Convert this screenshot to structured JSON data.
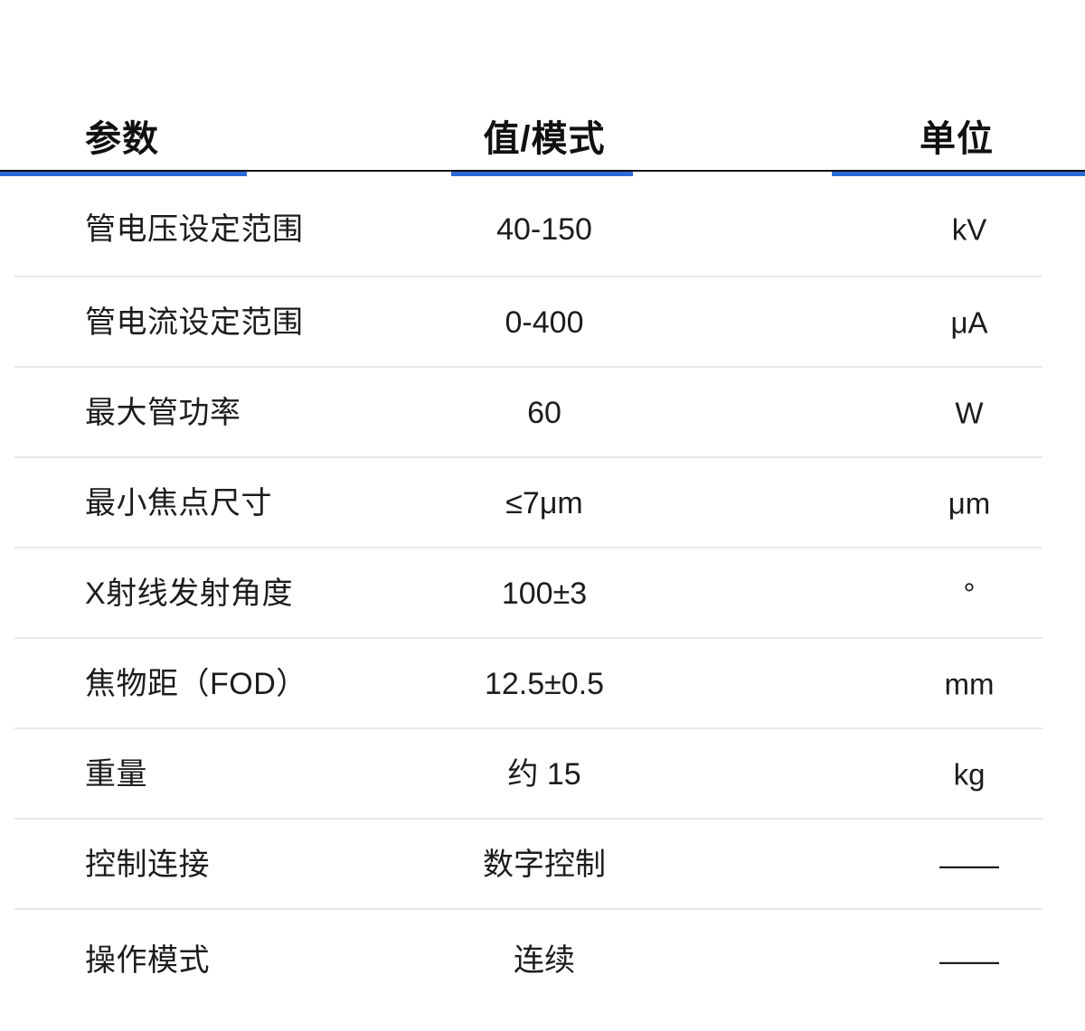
{
  "page": {
    "background_color": "#ffffff",
    "accent_color": "#2b6bd6",
    "header_rule_color": "#101010",
    "divider_color": "#e8e8e8",
    "text_color": "#1c1c1c"
  },
  "table": {
    "headers": [
      {
        "label": "参数"
      },
      {
        "label": "值/模式"
      },
      {
        "label": "单位"
      }
    ],
    "rows": [
      {
        "parameter": "管电压设定范围",
        "value": "40-150",
        "unit": "kV"
      },
      {
        "parameter": "管电流设定范围",
        "value": "0-400",
        "unit": "μA"
      },
      {
        "parameter": "最大管功率",
        "value": "60",
        "unit": "W"
      },
      {
        "parameter": "最小焦点尺寸",
        "value": "≤7μm",
        "unit": "μm"
      },
      {
        "parameter": "X射线发射角度",
        "value": "100±3",
        "unit": "°"
      },
      {
        "parameter": "焦物距（FOD）",
        "value": "12.5±0.5",
        "unit": "mm"
      },
      {
        "parameter": "重量",
        "value": "约 15",
        "unit": "kg"
      },
      {
        "parameter": "控制连接",
        "value": "数字控制",
        "unit": "——"
      },
      {
        "parameter": "操作模式",
        "value": "连续",
        "unit": "——"
      }
    ]
  }
}
